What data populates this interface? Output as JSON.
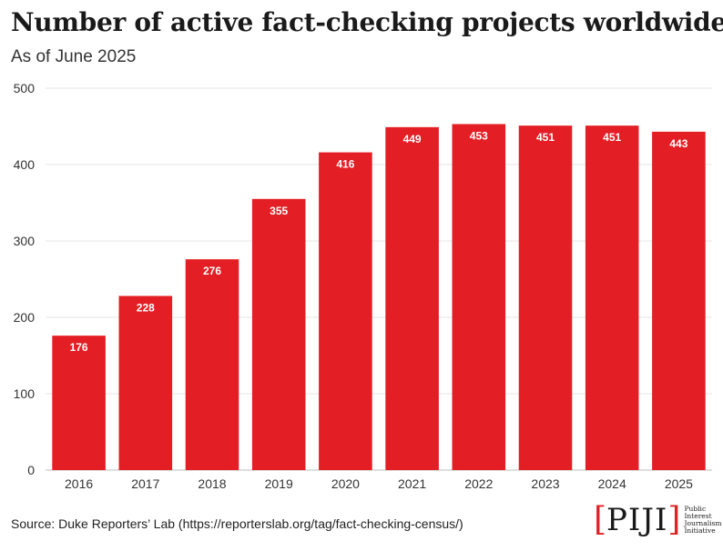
{
  "title": "Number of active fact-checking projects worldwide",
  "subtitle": "As of June 2025",
  "source": "Source: Duke Reporters’ Lab (https://reporterslab.org/tag/fact-checking-census/)",
  "logo": {
    "bracket_left": "[",
    "mark": "PIJI",
    "bracket_right": "]",
    "line1": "Public",
    "line2": "Interest",
    "line3": "Journalism",
    "line4": "Initiative"
  },
  "colors": {
    "bar": "#e31e24",
    "grid": "#e6e6e6",
    "label": "#ffffff"
  },
  "chart_data": {
    "type": "bar",
    "categories": [
      "2016",
      "2017",
      "2018",
      "2019",
      "2020",
      "2021",
      "2022",
      "2023",
      "2024",
      "2025"
    ],
    "values": [
      176,
      228,
      276,
      355,
      416,
      449,
      453,
      451,
      451,
      443
    ],
    "title": "Number of active fact-checking projects worldwide",
    "subtitle": "As of June 2025",
    "xlabel": "",
    "ylabel": "",
    "ylim": [
      0,
      500
    ],
    "yticks": [
      0,
      100,
      200,
      300,
      400,
      500
    ],
    "grid": true,
    "data_labels": true
  }
}
